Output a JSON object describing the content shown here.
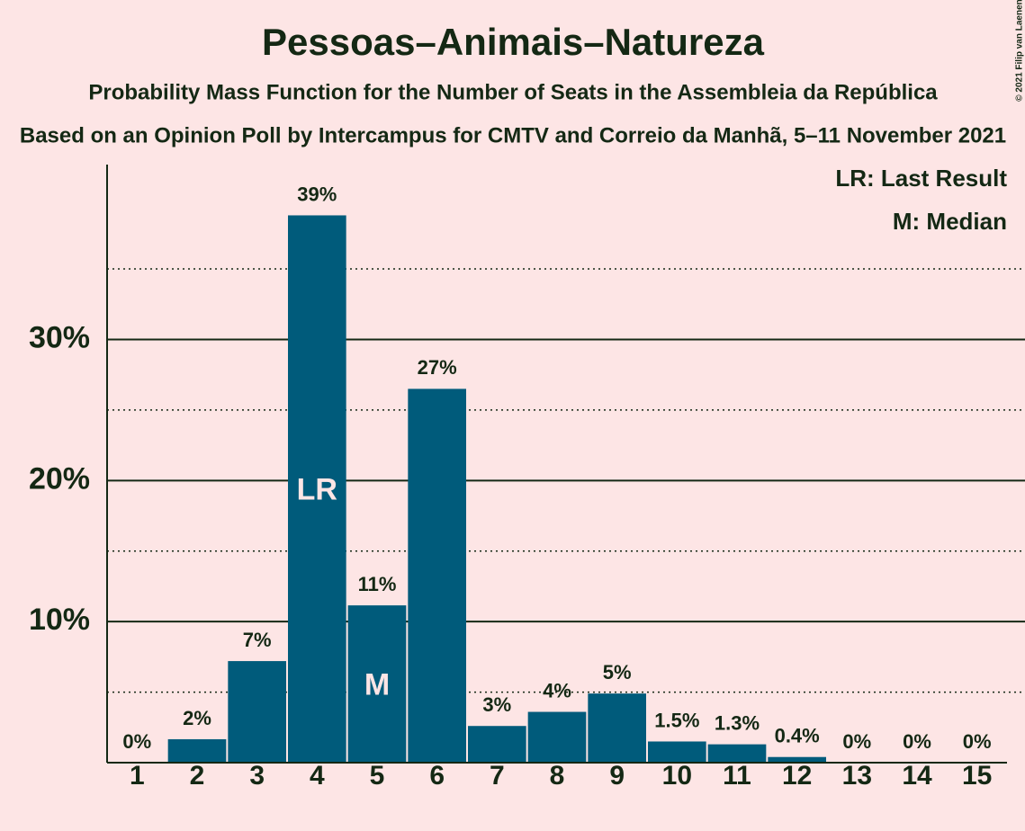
{
  "chart_data": {
    "type": "bar",
    "title": "Pessoas–Animais–Natureza",
    "subtitle": "Probability Mass Function for the Number of Seats in the Assembleia da República",
    "subtitle2": "Based on an Opinion Poll by Intercampus for CMTV and Correio da Manhã, 5–11 November 2021",
    "copyright": "© 2021 Filip van Laenen",
    "categories": [
      "1",
      "2",
      "3",
      "4",
      "5",
      "6",
      "7",
      "8",
      "9",
      "10",
      "11",
      "12",
      "13",
      "14",
      "15"
    ],
    "values": [
      0,
      1.66,
      7.2,
      38.8,
      11.15,
      26.5,
      2.6,
      3.6,
      4.9,
      1.5,
      1.3,
      0.4,
      0,
      0,
      0
    ],
    "value_labels": [
      "0%",
      "2%",
      "7%",
      "39%",
      "11%",
      "27%",
      "3%",
      "4%",
      "5%",
      "1.5%",
      "1.3%",
      "0.4%",
      "0%",
      "0%",
      "0%"
    ],
    "color": "#005b7b",
    "ylim": [
      0,
      42.4
    ],
    "yticks": [
      {
        "value": 10,
        "label": "10%"
      },
      {
        "value": 20,
        "label": "20%"
      },
      {
        "value": 30,
        "label": "30%"
      }
    ],
    "minor_yticks": [
      5,
      15,
      25,
      35
    ],
    "grid": true,
    "annotations": [
      {
        "category": "4",
        "text": "LR"
      },
      {
        "category": "5",
        "text": "M"
      }
    ],
    "legend": [
      "LR: Last Result",
      "M: Median"
    ],
    "legend_position": "upper right"
  }
}
